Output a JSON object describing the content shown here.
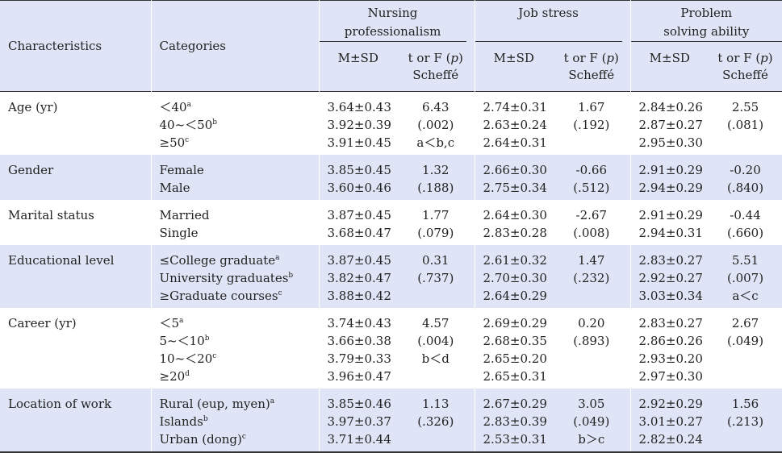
{
  "header": {
    "characteristics": "Characteristics",
    "categories": "Categories",
    "groups": [
      {
        "title_line1": "Nursing",
        "title_line2": "professionalism"
      },
      {
        "title_line1": "Job stress",
        "title_line2": ""
      },
      {
        "title_line1": "Problem",
        "title_line2": "solving ability"
      }
    ],
    "msd": "M±SD",
    "stat_line1_pre": "t or F (",
    "stat_p": "p",
    "stat_line1_post": ")",
    "stat_line2": "Scheffé"
  },
  "rows": [
    {
      "characteristic": "Age (yr)",
      "categories": [
        {
          "text": "＜40",
          "sup": "a"
        },
        {
          "text": "40~＜50",
          "sup": "b"
        },
        {
          "text": "≥50",
          "sup": "c"
        }
      ],
      "np_msd": [
        "3.64±0.43",
        "3.92±0.39",
        "3.91±0.45"
      ],
      "np_stat": [
        "6.43",
        "(.002)",
        "a＜b,c"
      ],
      "js_msd": [
        "2.74±0.31",
        "2.63±0.24",
        "2.64±0.31"
      ],
      "js_stat": [
        "1.67",
        "(.192)"
      ],
      "ps_msd": [
        "2.84±0.26",
        "2.87±0.27",
        "2.95±0.30"
      ],
      "ps_stat": [
        "2.55",
        "(.081)"
      ]
    },
    {
      "characteristic": "Gender",
      "categories": [
        {
          "text": "Female",
          "sup": ""
        },
        {
          "text": "Male",
          "sup": ""
        }
      ],
      "np_msd": [
        "3.85±0.45",
        "3.60±0.46"
      ],
      "np_stat": [
        "1.32",
        "(.188)"
      ],
      "js_msd": [
        "2.66±0.30",
        "2.75±0.34"
      ],
      "js_stat": [
        "-0.66",
        "(.512)"
      ],
      "ps_msd": [
        "2.91±0.29",
        "2.94±0.29"
      ],
      "ps_stat": [
        "-0.20",
        "(.840)"
      ]
    },
    {
      "characteristic": "Marital status",
      "categories": [
        {
          "text": "Married",
          "sup": ""
        },
        {
          "text": "Single",
          "sup": ""
        }
      ],
      "np_msd": [
        "3.87±0.45",
        "3.68±0.47"
      ],
      "np_stat": [
        "1.77",
        "(.079)"
      ],
      "js_msd": [
        "2.64±0.30",
        "2.83±0.28"
      ],
      "js_stat": [
        "-2.67",
        "(.008)"
      ],
      "ps_msd": [
        "2.91±0.29",
        "2.94±0.31"
      ],
      "ps_stat": [
        "-0.44",
        "(.660)"
      ]
    },
    {
      "characteristic": "Educational level",
      "categories": [
        {
          "text": "≤College graduate",
          "sup": "a"
        },
        {
          "text": "University graduates",
          "sup": "b"
        },
        {
          "text": "≥Graduate courses",
          "sup": "c"
        }
      ],
      "np_msd": [
        "3.87±0.45",
        "3.82±0.47",
        "3.88±0.42"
      ],
      "np_stat": [
        "0.31",
        "(.737)"
      ],
      "js_msd": [
        "2.61±0.32",
        "2.70±0.30",
        "2.64±0.29"
      ],
      "js_stat": [
        "1.47",
        "(.232)"
      ],
      "ps_msd": [
        "2.83±0.27",
        "2.92±0.27",
        "3.03±0.34"
      ],
      "ps_stat": [
        "5.51",
        "(.007)",
        "a＜c"
      ]
    },
    {
      "characteristic": "Career (yr)",
      "categories": [
        {
          "text": "＜5",
          "sup": "a"
        },
        {
          "text": "5~＜10",
          "sup": "b"
        },
        {
          "text": "10~＜20",
          "sup": "c"
        },
        {
          "text": "≥20",
          "sup": "d"
        }
      ],
      "np_msd": [
        "3.74±0.43",
        "3.66±0.38",
        "3.79±0.33",
        "3.96±0.47"
      ],
      "np_stat": [
        "4.57",
        "(.004)",
        "b＜d"
      ],
      "js_msd": [
        "2.69±0.29",
        "2.68±0.35",
        "2.65±0.20",
        "2.65±0.31"
      ],
      "js_stat": [
        "0.20",
        "(.893)"
      ],
      "ps_msd": [
        "2.83±0.27",
        "2.86±0.26",
        "2.93±0.20",
        "2.97±0.30"
      ],
      "ps_stat": [
        "2.67",
        "(.049)"
      ]
    },
    {
      "characteristic": "Location of work",
      "categories": [
        {
          "text": "Rural (eup, myen)",
          "sup": "a"
        },
        {
          "text": "Islands",
          "sup": "b"
        },
        {
          "text": "Urban (dong)",
          "sup": "c"
        }
      ],
      "np_msd": [
        "3.85±0.46",
        "3.97±0.37",
        "3.71±0.44"
      ],
      "np_stat": [
        "1.13",
        "(.326)"
      ],
      "js_msd": [
        "2.67±0.29",
        "2.83±0.39",
        "2.53±0.31"
      ],
      "js_stat": [
        "3.05",
        "(.049)",
        "b＞c"
      ],
      "ps_msd": [
        "2.92±0.29",
        "3.01±0.27",
        "2.82±0.24"
      ],
      "ps_stat": [
        "1.56",
        "(.213)"
      ]
    }
  ]
}
